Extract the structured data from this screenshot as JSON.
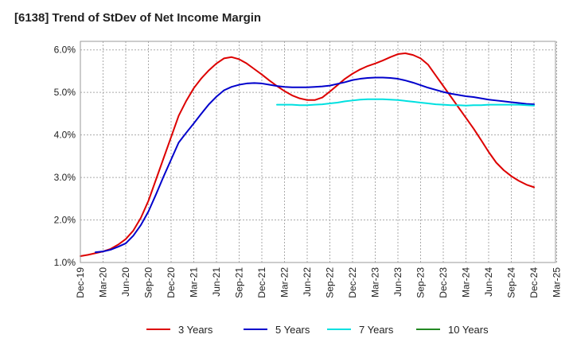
{
  "chart_data": {
    "type": "line",
    "title": "[6138]  Trend of StDev of Net Income Margin",
    "xlabel": "",
    "ylabel": "",
    "x_tick_labels": [
      "Dec-19",
      "Mar-20",
      "Jun-20",
      "Sep-20",
      "Dec-20",
      "Mar-21",
      "Jun-21",
      "Sep-21",
      "Dec-21",
      "Mar-22",
      "Jun-22",
      "Sep-22",
      "Dec-22",
      "Mar-23",
      "Jun-23",
      "Sep-23",
      "Dec-23",
      "Mar-24",
      "Jun-24",
      "Sep-24",
      "Dec-24",
      "Mar-25"
    ],
    "y_tick_labels": [
      "1.0%",
      "2.0%",
      "3.0%",
      "4.0%",
      "5.0%",
      "6.0%"
    ],
    "y_ticks": [
      1.0,
      2.0,
      3.0,
      4.0,
      5.0,
      6.0
    ],
    "ylim": [
      1.0,
      6.2
    ],
    "grid": true,
    "legend_position": "bottom",
    "series": [
      {
        "name": "3 Years",
        "color": "#dd0000",
        "points": [
          [
            "Dec-19",
            1.15
          ],
          [
            "Jan-20",
            1.18
          ],
          [
            "Feb-20",
            1.22
          ],
          [
            "Mar-20",
            1.26
          ],
          [
            "Apr-20",
            1.32
          ],
          [
            "May-20",
            1.42
          ],
          [
            "Jun-20",
            1.55
          ],
          [
            "Jul-20",
            1.75
          ],
          [
            "Aug-20",
            2.05
          ],
          [
            "Sep-20",
            2.45
          ],
          [
            "Oct-20",
            2.95
          ],
          [
            "Nov-20",
            3.45
          ],
          [
            "Dec-20",
            3.95
          ],
          [
            "Jan-21",
            4.45
          ],
          [
            "Feb-21",
            4.8
          ],
          [
            "Mar-21",
            5.1
          ],
          [
            "Apr-21",
            5.33
          ],
          [
            "May-21",
            5.52
          ],
          [
            "Jun-21",
            5.68
          ],
          [
            "Jul-21",
            5.8
          ],
          [
            "Aug-21",
            5.83
          ],
          [
            "Sep-21",
            5.78
          ],
          [
            "Oct-21",
            5.68
          ],
          [
            "Nov-21",
            5.55
          ],
          [
            "Dec-21",
            5.42
          ],
          [
            "Jan-22",
            5.28
          ],
          [
            "Feb-22",
            5.15
          ],
          [
            "Mar-22",
            5.03
          ],
          [
            "Apr-22",
            4.93
          ],
          [
            "May-22",
            4.86
          ],
          [
            "Jun-22",
            4.82
          ],
          [
            "Jul-22",
            4.82
          ],
          [
            "Aug-22",
            4.88
          ],
          [
            "Sep-22",
            5.02
          ],
          [
            "Oct-22",
            5.17
          ],
          [
            "Nov-22",
            5.32
          ],
          [
            "Dec-22",
            5.44
          ],
          [
            "Jan-23",
            5.54
          ],
          [
            "Feb-23",
            5.62
          ],
          [
            "Mar-23",
            5.68
          ],
          [
            "Apr-23",
            5.75
          ],
          [
            "May-23",
            5.83
          ],
          [
            "Jun-23",
            5.9
          ],
          [
            "Jul-23",
            5.92
          ],
          [
            "Aug-23",
            5.88
          ],
          [
            "Sep-23",
            5.8
          ],
          [
            "Oct-23",
            5.65
          ],
          [
            "Nov-23",
            5.4
          ],
          [
            "Dec-23",
            5.15
          ],
          [
            "Jan-24",
            4.9
          ],
          [
            "Feb-24",
            4.65
          ],
          [
            "Mar-24",
            4.4
          ],
          [
            "Apr-24",
            4.15
          ],
          [
            "May-24",
            3.88
          ],
          [
            "Jun-24",
            3.6
          ],
          [
            "Jul-24",
            3.35
          ],
          [
            "Aug-24",
            3.17
          ],
          [
            "Sep-24",
            3.03
          ],
          [
            "Oct-24",
            2.92
          ],
          [
            "Nov-24",
            2.83
          ],
          [
            "Dec-24",
            2.77
          ]
        ]
      },
      {
        "name": "5 Years",
        "color": "#0000cc",
        "points": [
          [
            "Feb-20",
            1.24
          ],
          [
            "Mar-20",
            1.26
          ],
          [
            "Apr-20",
            1.3
          ],
          [
            "May-20",
            1.37
          ],
          [
            "Jun-20",
            1.45
          ],
          [
            "Jul-20",
            1.63
          ],
          [
            "Aug-20",
            1.88
          ],
          [
            "Sep-20",
            2.2
          ],
          [
            "Oct-20",
            2.6
          ],
          [
            "Nov-20",
            3.02
          ],
          [
            "Dec-20",
            3.42
          ],
          [
            "Jan-21",
            3.82
          ],
          [
            "Feb-21",
            4.05
          ],
          [
            "Mar-21",
            4.27
          ],
          [
            "Apr-21",
            4.5
          ],
          [
            "May-21",
            4.72
          ],
          [
            "Jun-21",
            4.9
          ],
          [
            "Jul-21",
            5.05
          ],
          [
            "Aug-21",
            5.13
          ],
          [
            "Sep-21",
            5.18
          ],
          [
            "Oct-21",
            5.21
          ],
          [
            "Nov-21",
            5.22
          ],
          [
            "Dec-21",
            5.21
          ],
          [
            "Jan-22",
            5.18
          ],
          [
            "Feb-22",
            5.15
          ],
          [
            "Mar-22",
            5.13
          ],
          [
            "Apr-22",
            5.12
          ],
          [
            "May-22",
            5.12
          ],
          [
            "Jun-22",
            5.12
          ],
          [
            "Jul-22",
            5.13
          ],
          [
            "Aug-22",
            5.14
          ],
          [
            "Sep-22",
            5.16
          ],
          [
            "Oct-22",
            5.2
          ],
          [
            "Nov-22",
            5.24
          ],
          [
            "Dec-22",
            5.29
          ],
          [
            "Jan-23",
            5.32
          ],
          [
            "Feb-23",
            5.34
          ],
          [
            "Mar-23",
            5.35
          ],
          [
            "Apr-23",
            5.35
          ],
          [
            "May-23",
            5.34
          ],
          [
            "Jun-23",
            5.32
          ],
          [
            "Jul-23",
            5.28
          ],
          [
            "Aug-23",
            5.23
          ],
          [
            "Sep-23",
            5.17
          ],
          [
            "Oct-23",
            5.11
          ],
          [
            "Nov-23",
            5.06
          ],
          [
            "Dec-23",
            5.01
          ],
          [
            "Jan-24",
            4.97
          ],
          [
            "Feb-24",
            4.94
          ],
          [
            "Mar-24",
            4.91
          ],
          [
            "Apr-24",
            4.89
          ],
          [
            "May-24",
            4.86
          ],
          [
            "Jun-24",
            4.83
          ],
          [
            "Jul-24",
            4.81
          ],
          [
            "Aug-24",
            4.79
          ],
          [
            "Sep-24",
            4.77
          ],
          [
            "Oct-24",
            4.75
          ],
          [
            "Nov-24",
            4.73
          ],
          [
            "Dec-24",
            4.72
          ]
        ]
      },
      {
        "name": "7 Years",
        "color": "#00e0e0",
        "points": [
          [
            "Feb-22",
            4.71
          ],
          [
            "Mar-22",
            4.71
          ],
          [
            "Apr-22",
            4.71
          ],
          [
            "May-22",
            4.7
          ],
          [
            "Jun-22",
            4.7
          ],
          [
            "Jul-22",
            4.71
          ],
          [
            "Aug-22",
            4.72
          ],
          [
            "Sep-22",
            4.74
          ],
          [
            "Oct-22",
            4.76
          ],
          [
            "Nov-22",
            4.79
          ],
          [
            "Dec-22",
            4.81
          ],
          [
            "Jan-23",
            4.83
          ],
          [
            "Feb-23",
            4.84
          ],
          [
            "Mar-23",
            4.84
          ],
          [
            "Apr-23",
            4.84
          ],
          [
            "May-23",
            4.83
          ],
          [
            "Jun-23",
            4.82
          ],
          [
            "Jul-23",
            4.8
          ],
          [
            "Aug-23",
            4.78
          ],
          [
            "Sep-23",
            4.76
          ],
          [
            "Oct-23",
            4.74
          ],
          [
            "Nov-23",
            4.72
          ],
          [
            "Dec-23",
            4.71
          ],
          [
            "Jan-24",
            4.7
          ],
          [
            "Feb-24",
            4.7
          ],
          [
            "Mar-24",
            4.69
          ],
          [
            "Apr-24",
            4.7
          ],
          [
            "May-24",
            4.7
          ],
          [
            "Jun-24",
            4.71
          ],
          [
            "Jul-24",
            4.71
          ],
          [
            "Aug-24",
            4.71
          ],
          [
            "Sep-24",
            4.71
          ],
          [
            "Oct-24",
            4.71
          ],
          [
            "Nov-24",
            4.7
          ],
          [
            "Dec-24",
            4.69
          ]
        ]
      },
      {
        "name": "10 Years",
        "color": "#228822",
        "points": []
      }
    ]
  }
}
